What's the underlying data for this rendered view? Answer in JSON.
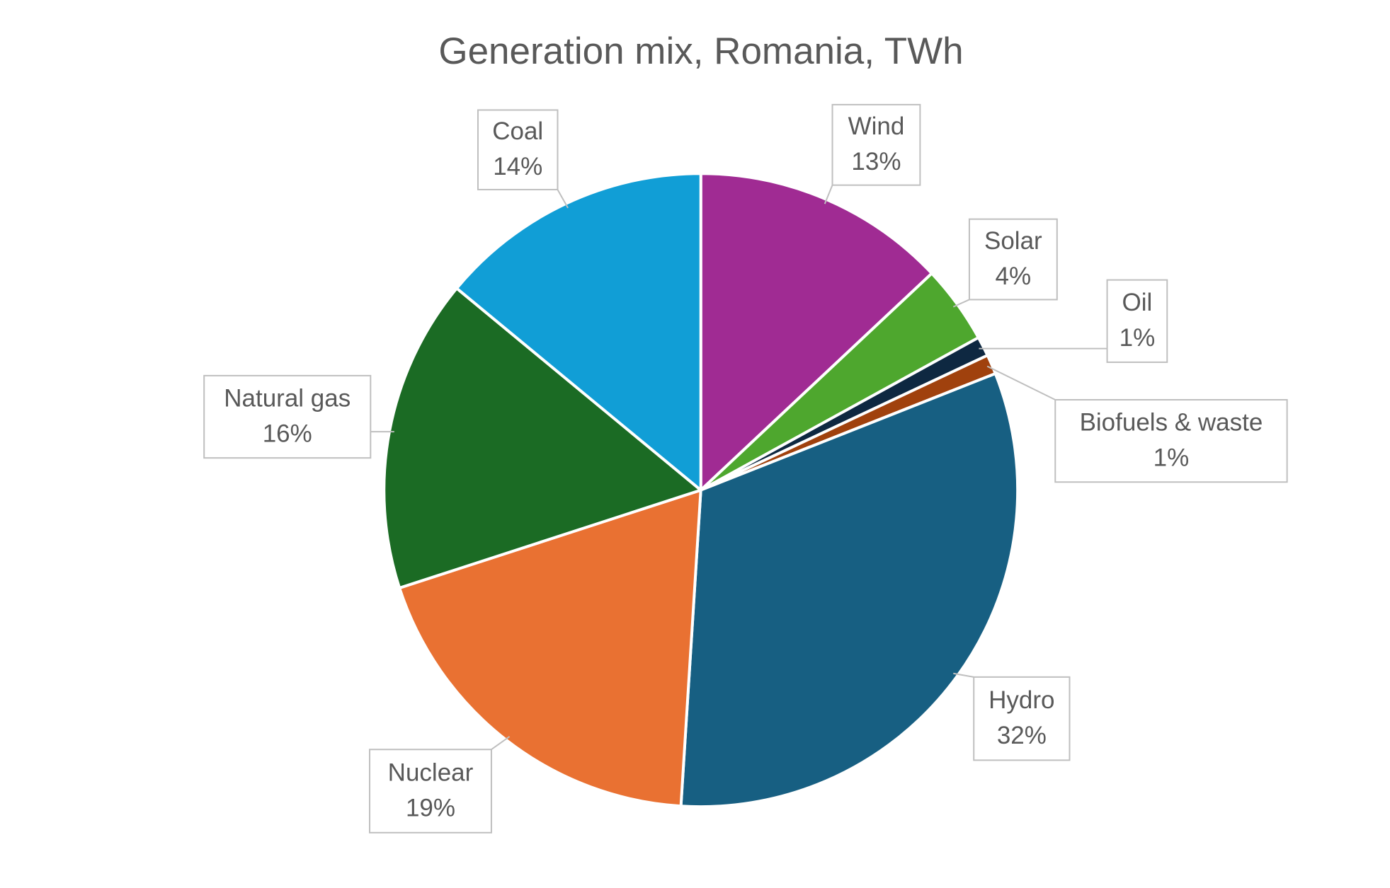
{
  "chart_data": {
    "type": "pie",
    "title": "Generation mix, Romania, TWh",
    "categories": [
      "Wind",
      "Solar",
      "Oil",
      "Biofuels & waste",
      "Hydro",
      "Nuclear",
      "Natural gas",
      "Coal"
    ],
    "values": [
      13,
      4,
      1,
      1,
      32,
      19,
      16,
      14
    ],
    "value_labels": [
      "13%",
      "4%",
      "1%",
      "1%",
      "32%",
      "19%",
      "16%",
      "14%"
    ],
    "colors": [
      "#a02b93",
      "#4ea72e",
      "#0e2841",
      "#a0410d",
      "#175f82",
      "#e97132",
      "#1b6b24",
      "#119ed6"
    ]
  }
}
